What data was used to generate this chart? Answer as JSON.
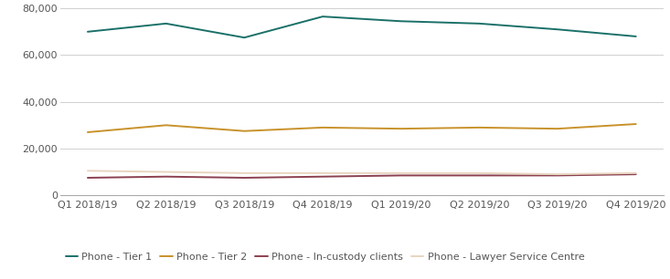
{
  "categories": [
    "Q1 2018/19",
    "Q2 2018/19",
    "Q3 2018/19",
    "Q4 2018/19",
    "Q1 2019/20",
    "Q2 2019/20",
    "Q3 2019/20",
    "Q4 2019/20"
  ],
  "series": [
    {
      "label": "Phone - Tier 1",
      "color": "#1a7068",
      "values": [
        70000,
        73500,
        67500,
        76500,
        74500,
        73500,
        71000,
        68000
      ]
    },
    {
      "label": "Phone - Tier 2",
      "color": "#c8922a",
      "values": [
        27000,
        30000,
        27500,
        29000,
        28500,
        29000,
        28500,
        30500
      ]
    },
    {
      "label": "Phone - In-custody clients",
      "color": "#8b4050",
      "values": [
        7500,
        8000,
        7500,
        8000,
        8500,
        8500,
        8500,
        9000
      ]
    },
    {
      "label": "Phone - Lawyer Service Centre",
      "color": "#e8d5c0",
      "values": [
        10500,
        10000,
        9500,
        9500,
        9500,
        9500,
        9000,
        9500
      ]
    }
  ],
  "ylim": [
    0,
    80000
  ],
  "yticks": [
    0,
    20000,
    40000,
    60000,
    80000
  ],
  "ytick_labels": [
    "0",
    "20,000",
    "40,000",
    "60,000",
    "80,000"
  ],
  "background_color": "#ffffff",
  "grid_color": "#d0d0d0",
  "legend_fontsize": 8.0,
  "tick_fontsize": 8.0,
  "line_width": 1.4
}
